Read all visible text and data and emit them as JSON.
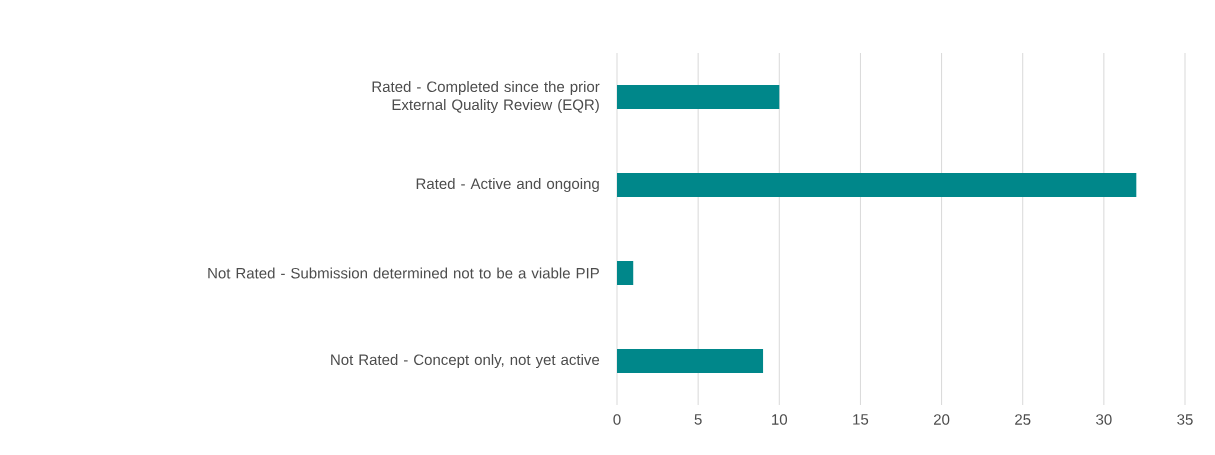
{
  "chart_data": {
    "type": "bar",
    "orientation": "horizontal",
    "categories": [
      "Rated - Completed since the prior External Quality Review (EQR)",
      "Rated - Active and ongoing",
      "Not Rated - Submission determined not to be a viable PIP",
      "Not Rated - Concept only, not yet active"
    ],
    "values": [
      10,
      32,
      1,
      9
    ],
    "color": "#00878a",
    "xlim": [
      0,
      35
    ],
    "xticks": [
      0,
      5,
      10,
      15,
      20,
      25,
      30,
      35
    ],
    "grid": "x"
  }
}
